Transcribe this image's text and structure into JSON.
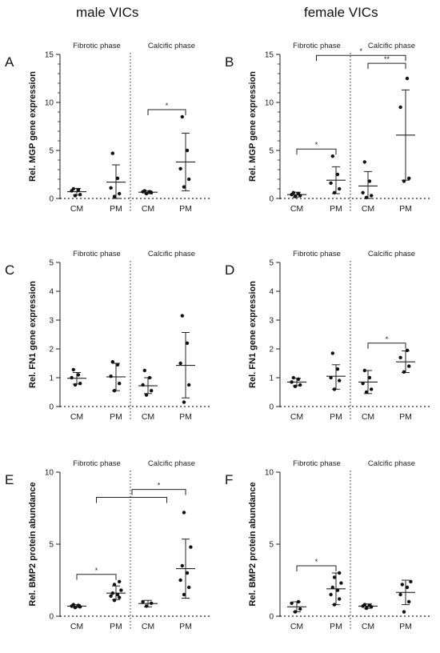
{
  "column_titles": [
    "male VICs",
    "female VICs"
  ],
  "chart_data": [
    {
      "id": "A",
      "type": "scatter",
      "ylabel": "Rel. MGP gene expression",
      "ylim": [
        0,
        15
      ],
      "yticks": [
        0,
        5,
        10,
        15
      ],
      "yminor": [
        1,
        2,
        3,
        4,
        6,
        7,
        8,
        9,
        11,
        12,
        13,
        14
      ],
      "phases": [
        "Fibrotic phase",
        "Calcific phase"
      ],
      "categories": [
        "CM",
        "PM",
        "CM",
        "PM"
      ],
      "groups": [
        {
          "points": [
            0.3,
            0.4,
            0.8,
            0.9,
            1.0
          ],
          "mean": 0.7,
          "sd_low": 0.35,
          "sd_high": 1.05
        },
        {
          "points": [
            0.2,
            0.5,
            1.1,
            2.1,
            4.7
          ],
          "mean": 1.7,
          "sd_low": 0.0,
          "sd_high": 3.5
        },
        {
          "points": [
            0.5,
            0.6,
            0.7,
            0.7,
            0.8
          ],
          "mean": 0.65,
          "sd_low": 0.5,
          "sd_high": 0.8
        },
        {
          "points": [
            1.2,
            2.0,
            3.1,
            5.0,
            8.5
          ],
          "mean": 3.8,
          "sd_low": 0.8,
          "sd_high": 6.8
        }
      ],
      "significance": [
        {
          "from": 2,
          "to": 3,
          "label": "*"
        }
      ]
    },
    {
      "id": "B",
      "type": "scatter",
      "ylabel": "Rel. MGP gene expression",
      "ylim": [
        0,
        15
      ],
      "yticks": [
        0,
        5,
        10,
        15
      ],
      "yminor": [
        1,
        2,
        3,
        4,
        6,
        7,
        8,
        9,
        11,
        12,
        13,
        14
      ],
      "phases": [
        "Fibrotic phase",
        "Calcific phase"
      ],
      "categories": [
        "CM",
        "PM",
        "CM",
        "PM"
      ],
      "groups": [
        {
          "points": [
            0.2,
            0.3,
            0.4,
            0.5,
            0.6
          ],
          "mean": 0.4,
          "sd_low": 0.15,
          "sd_high": 0.65
        },
        {
          "points": [
            0.6,
            1.0,
            1.6,
            2.5,
            4.4
          ],
          "mean": 1.9,
          "sd_low": 0.5,
          "sd_high": 3.3
        },
        {
          "points": [
            0.1,
            0.3,
            0.6,
            1.8,
            3.8
          ],
          "mean": 1.3,
          "sd_low": 0.0,
          "sd_high": 2.8
        },
        {
          "points": [
            1.8,
            2.1,
            9.5,
            12.5
          ],
          "mean": 6.6,
          "sd_low": 1.9,
          "sd_high": 11.3
        }
      ],
      "significance": [
        {
          "from": 0,
          "to": 1,
          "label": "*"
        },
        {
          "from": 2,
          "to": 3,
          "label": "**"
        },
        {
          "from": 0.5,
          "to": 3,
          "label": "*"
        }
      ]
    },
    {
      "id": "C",
      "type": "scatter",
      "ylabel": "Rel. FN1 gene expression",
      "ylim": [
        0,
        5
      ],
      "yticks": [
        0,
        1,
        2,
        3,
        4,
        5
      ],
      "yminor": [],
      "phases": [
        "Fibrotic phase",
        "Calcific phase"
      ],
      "categories": [
        "CM",
        "PM",
        "CM",
        "PM"
      ],
      "groups": [
        {
          "points": [
            0.75,
            0.8,
            1.0,
            1.1,
            1.28
          ],
          "mean": 0.98,
          "sd_low": 0.78,
          "sd_high": 1.18
        },
        {
          "points": [
            0.55,
            0.8,
            1.05,
            1.45,
            1.55
          ],
          "mean": 1.03,
          "sd_low": 0.55,
          "sd_high": 1.5
        },
        {
          "points": [
            0.4,
            0.55,
            0.75,
            1.0,
            1.25
          ],
          "mean": 0.72,
          "sd_low": 0.45,
          "sd_high": 1.0
        },
        {
          "points": [
            0.15,
            0.75,
            1.5,
            2.2,
            3.15
          ],
          "mean": 1.43,
          "sd_low": 0.3,
          "sd_high": 2.57
        }
      ],
      "significance": []
    },
    {
      "id": "D",
      "type": "scatter",
      "ylabel": "Rel. FN1 gene expression",
      "ylim": [
        0,
        5
      ],
      "yticks": [
        0,
        1,
        2,
        3,
        4,
        5
      ],
      "yminor": [],
      "phases": [
        "Fibrotic phase",
        "Calcific phase"
      ],
      "categories": [
        "CM",
        "PM",
        "CM",
        "PM"
      ],
      "groups": [
        {
          "points": [
            0.7,
            0.75,
            0.85,
            0.95,
            1.0
          ],
          "mean": 0.85,
          "sd_low": 0.72,
          "sd_high": 0.98
        },
        {
          "points": [
            0.6,
            0.9,
            1.0,
            1.3,
            1.85
          ],
          "mean": 1.05,
          "sd_low": 0.6,
          "sd_high": 1.45
        },
        {
          "points": [
            0.5,
            0.6,
            0.8,
            1.0,
            1.25
          ],
          "mean": 0.85,
          "sd_low": 0.45,
          "sd_high": 1.25
        },
        {
          "points": [
            1.2,
            1.4,
            1.7,
            1.95
          ],
          "mean": 1.55,
          "sd_low": 1.18,
          "sd_high": 1.93
        }
      ],
      "significance": [
        {
          "from": 2,
          "to": 3,
          "label": "*"
        }
      ]
    },
    {
      "id": "E",
      "type": "scatter",
      "ylabel": "Rel. BMP2 protein abundance",
      "ylim": [
        0,
        10
      ],
      "yticks": [
        0,
        5,
        10
      ],
      "yminor": [],
      "phases": [
        "Fibrotic phase",
        "Calcific phase"
      ],
      "categories": [
        "CM",
        "PM",
        "CM",
        "PM"
      ],
      "groups": [
        {
          "points": [
            0.6,
            0.65,
            0.7,
            0.75,
            0.8
          ],
          "mean": 0.7,
          "sd_low": 0.6,
          "sd_high": 0.8
        },
        {
          "points": [
            1.1,
            1.3,
            1.4,
            1.5,
            1.6,
            1.8,
            2.2,
            2.4
          ],
          "mean": 1.6,
          "sd_low": 1.15,
          "sd_high": 2.1
        },
        {
          "points": [
            0.7,
            0.9,
            1.0
          ],
          "mean": 0.88,
          "sd_low": 0.65,
          "sd_high": 1.1
        },
        {
          "points": [
            1.5,
            2.0,
            2.5,
            3.0,
            3.5,
            4.8,
            7.2
          ],
          "mean": 3.3,
          "sd_low": 1.25,
          "sd_high": 5.35
        }
      ],
      "significance": [
        {
          "from": 0,
          "to": 1,
          "label": "*"
        },
        {
          "from": 0.5,
          "to": 2.5,
          "label": ""
        },
        {
          "from": 1.5,
          "to": 3,
          "label": "*"
        }
      ]
    },
    {
      "id": "F",
      "type": "scatter",
      "ylabel": "Rel. BMP2 protein abundance",
      "ylim": [
        0,
        10
      ],
      "yticks": [
        0,
        5,
        10
      ],
      "yminor": [],
      "phases": [
        "Fibrotic phase",
        "Calcific phase"
      ],
      "categories": [
        "CM",
        "PM",
        "CM",
        "PM"
      ],
      "groups": [
        {
          "points": [
            0.3,
            0.5,
            0.9,
            1.0
          ],
          "mean": 0.65,
          "sd_low": 0.3,
          "sd_high": 1.0
        },
        {
          "points": [
            0.8,
            1.2,
            1.5,
            1.8,
            2.0,
            2.3,
            2.7,
            3.0
          ],
          "mean": 1.9,
          "sd_low": 0.8,
          "sd_high": 3.0
        },
        {
          "points": [
            0.55,
            0.65,
            0.7,
            0.75,
            0.8
          ],
          "mean": 0.7,
          "sd_low": 0.55,
          "sd_high": 0.85
        },
        {
          "points": [
            0.3,
            1.0,
            1.5,
            2.0,
            2.2,
            2.4
          ],
          "mean": 1.65,
          "sd_low": 0.8,
          "sd_high": 2.5
        }
      ],
      "significance": [
        {
          "from": 0,
          "to": 1,
          "label": "*"
        }
      ]
    }
  ]
}
